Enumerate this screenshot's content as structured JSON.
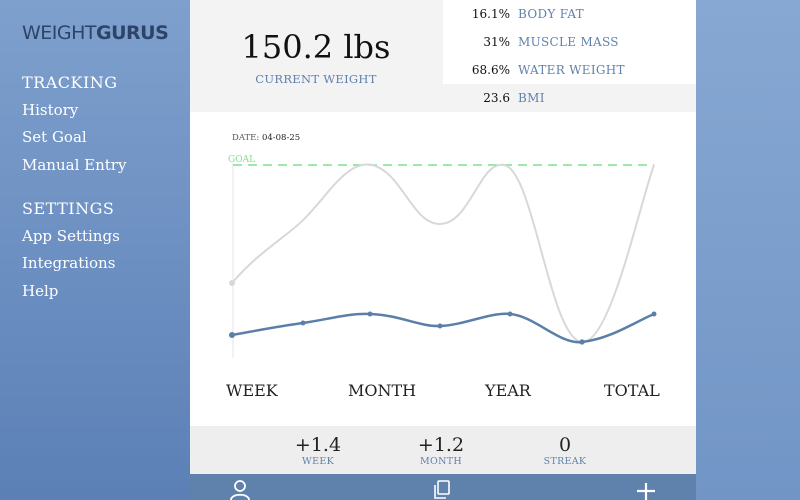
{
  "sidebar": {
    "logo_thin": "WEIGHT",
    "logo_bold": "GURUS",
    "tracking_title": "TRACKING",
    "tracking_items": [
      "History",
      "Set Goal",
      "Manual Entry"
    ],
    "settings_title": "SETTINGS",
    "settings_items": [
      "App Settings",
      "Integrations",
      "Help"
    ]
  },
  "header": {
    "weight": "150.2 lbs",
    "weight_label": "CURRENT WEIGHT",
    "stats": [
      {
        "value": "16.1%",
        "label": "BODY FAT"
      },
      {
        "value": "31%",
        "label": "MUSCLE MASS"
      },
      {
        "value": "68.6%",
        "label": "WATER WEIGHT"
      },
      {
        "value": "23.6",
        "label": "BMI"
      }
    ]
  },
  "chart": {
    "date_prefix": "DATE:",
    "date": "04-08-25",
    "goal_label": "GOAL",
    "goal_color": "#7ee08f",
    "primary_color": "#5b7fa8",
    "secondary_color": "#d8d8d8"
  },
  "ranges": [
    "WEEK",
    "MONTH",
    "YEAR",
    "TOTAL"
  ],
  "summary": [
    {
      "value": "+1.4",
      "label": "WEEK"
    },
    {
      "value": "+1.2",
      "label": "MONTH"
    },
    {
      "value": "0",
      "label": "STREAK"
    }
  ],
  "toolbar": {
    "icons": [
      "person-icon",
      "copy-icon",
      "plus-icon"
    ]
  }
}
